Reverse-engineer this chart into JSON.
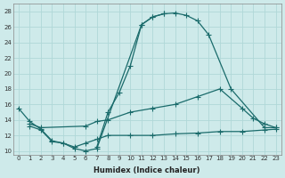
{
  "xlabel": "Humidex (Indice chaleur)",
  "bg_color": "#ceeaea",
  "grid_color": "#b0d8d8",
  "line_color": "#1a6b6b",
  "xlim": [
    -0.5,
    23.5
  ],
  "ylim": [
    9.5,
    29.0
  ],
  "ytick_values": [
    10,
    12,
    14,
    16,
    18,
    20,
    22,
    24,
    26,
    28
  ],
  "lines": [
    {
      "x": [
        0,
        1,
        2,
        3,
        4,
        5,
        6,
        7,
        11,
        12,
        13,
        14,
        15,
        16,
        17,
        19,
        22,
        23
      ],
      "y": [
        15.5,
        13.8,
        12.8,
        11.3,
        11.0,
        10.3,
        10.0,
        10.3,
        26.3,
        27.3,
        27.7,
        27.8,
        27.5,
        26.8,
        25.0,
        18.0,
        13.0,
        13.0
      ]
    },
    {
      "x": [
        7,
        8,
        9,
        10,
        11,
        12,
        13
      ],
      "y": [
        10.5,
        15.0,
        17.5,
        21.0,
        26.3,
        27.3,
        27.7
      ]
    },
    {
      "x": [
        1,
        2,
        6,
        7,
        8,
        10,
        12,
        14,
        16,
        18,
        20,
        21,
        22,
        23
      ],
      "y": [
        13.5,
        13.0,
        13.2,
        13.8,
        14.0,
        15.0,
        15.5,
        16.0,
        17.0,
        18.0,
        15.5,
        14.2,
        13.5,
        13.0
      ]
    },
    {
      "x": [
        1,
        2,
        3,
        4,
        5,
        6,
        7,
        8,
        10,
        12,
        14,
        16,
        18,
        20,
        22,
        23
      ],
      "y": [
        13.2,
        12.7,
        11.2,
        11.0,
        10.5,
        11.0,
        11.5,
        12.0,
        12.0,
        12.0,
        12.2,
        12.3,
        12.5,
        12.5,
        12.7,
        12.8
      ]
    }
  ]
}
